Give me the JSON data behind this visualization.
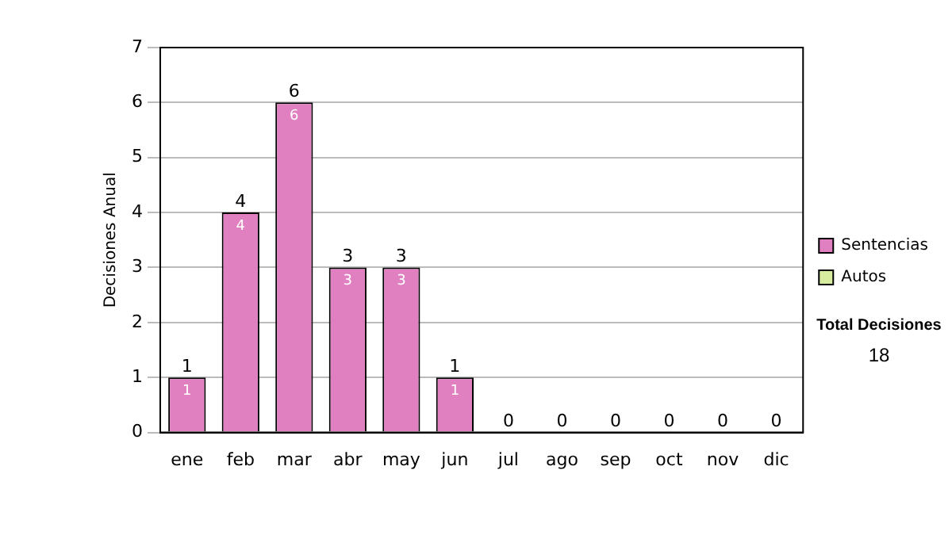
{
  "chart_data": {
    "type": "bar",
    "stacked": true,
    "ylabel": "Decisiones Anual",
    "categories": [
      "ene",
      "feb",
      "mar",
      "abr",
      "may",
      "jun",
      "jul",
      "ago",
      "sep",
      "oct",
      "nov",
      "dic"
    ],
    "series": [
      {
        "name": "Sentencias",
        "color": "#e080c0",
        "values": [
          1,
          4,
          6,
          3,
          3,
          1,
          0,
          0,
          0,
          0,
          0,
          0
        ],
        "value_labels": [
          "1",
          "4",
          "6",
          "3",
          "3",
          "1",
          null,
          null,
          null,
          null,
          null,
          null
        ]
      },
      {
        "name": "Autos",
        "color": "#d8eca0",
        "values": [
          0,
          0,
          0,
          0,
          0,
          0,
          0,
          0,
          0,
          0,
          0,
          0
        ]
      }
    ],
    "totals": [
      "1",
      "4",
      "6",
      "3",
      "3",
      "1",
      "0",
      "0",
      "0",
      "0",
      "0",
      "0"
    ],
    "ylim": [
      0,
      7
    ],
    "yticks": [
      0,
      1,
      2,
      3,
      4,
      5,
      6,
      7
    ],
    "grid": "y",
    "legend": "right",
    "annotations": [
      "Total Decisiones",
      "18"
    ]
  }
}
